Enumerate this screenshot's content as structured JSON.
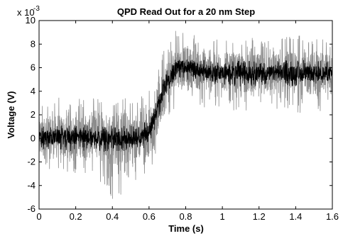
{
  "chart_data": {
    "type": "line",
    "title": "QPD Read Out for a 20 nm Step",
    "xlabel": "Time (s)",
    "ylabel": "Voltage (V)",
    "y_scale_label": "x 10",
    "y_scale_exponent": "-3",
    "xlim": [
      0,
      1.6
    ],
    "ylim": [
      -6,
      10
    ],
    "x_ticks": [
      0,
      0.2,
      0.4,
      0.6,
      0.8,
      1,
      1.2,
      1.4,
      1.6
    ],
    "x_tick_labels": [
      "0",
      "0.2",
      "0.4",
      "0.6",
      "0.8",
      "1",
      "1.2",
      "1.4",
      "1.6"
    ],
    "y_ticks": [
      -6,
      -4,
      -2,
      0,
      2,
      4,
      6,
      8,
      10
    ],
    "y_tick_labels": [
      "-6",
      "-4",
      "-2",
      "0",
      "2",
      "4",
      "6",
      "8",
      "10"
    ],
    "grid": false,
    "series": [
      {
        "color": "#8c8c8c",
        "x": [
          0,
          0.1,
          0.2,
          0.3,
          0.4,
          0.5,
          0.55,
          0.6,
          0.65,
          0.7,
          0.75,
          0.8,
          0.9,
          1.0,
          1.1,
          1.2,
          1.3,
          1.4,
          1.5,
          1.6
        ],
        "y": [
          0,
          0.1,
          0.2,
          0.1,
          0,
          0,
          0.1,
          0.5,
          2.5,
          4.8,
          6.0,
          6.1,
          5.7,
          5.6,
          5.5,
          5.5,
          5.5,
          5.5,
          5.5,
          5.5
        ],
        "noise_min": [
          -3,
          -3.2,
          -3,
          -3.3,
          -5.2,
          -4.5,
          -3.2,
          -3,
          -1,
          1.2,
          3,
          3,
          2.5,
          2.5,
          2.3,
          2.5,
          2.3,
          2,
          2.3,
          2.3
        ],
        "noise_max": [
          3.6,
          3.5,
          3.6,
          3.4,
          3.5,
          3.6,
          3.5,
          4.5,
          6.5,
          8.5,
          9.2,
          9.0,
          8.8,
          8.4,
          8.4,
          8.6,
          8.5,
          8.7,
          8.8,
          8.6
        ]
      },
      {
        "color": "#000000",
        "x": [
          0,
          0.1,
          0.2,
          0.3,
          0.4,
          0.5,
          0.55,
          0.6,
          0.65,
          0.7,
          0.75,
          0.8,
          0.9,
          1.0,
          1.1,
          1.2,
          1.3,
          1.4,
          1.5,
          1.6
        ],
        "y": [
          0,
          0.1,
          0.1,
          0.1,
          0,
          0,
          0.1,
          0.6,
          2.7,
          4.9,
          6.1,
          6.1,
          5.7,
          5.6,
          5.5,
          5.5,
          5.5,
          5.5,
          5.5,
          5.5
        ],
        "noise_min": [
          -1.1,
          -1.1,
          -1.1,
          -1.1,
          -1.2,
          -1.1,
          -1.0,
          -0.6,
          1.5,
          3.8,
          5.0,
          5.0,
          4.6,
          4.5,
          4.4,
          4.4,
          4.4,
          4.3,
          4.4,
          4.4
        ],
        "noise_max": [
          1.1,
          1.1,
          1.2,
          1.1,
          1.1,
          1.1,
          1.1,
          1.8,
          3.9,
          6.0,
          7.0,
          6.9,
          6.7,
          6.6,
          6.6,
          6.6,
          6.7,
          6.6,
          6.7,
          6.6
        ]
      }
    ]
  }
}
